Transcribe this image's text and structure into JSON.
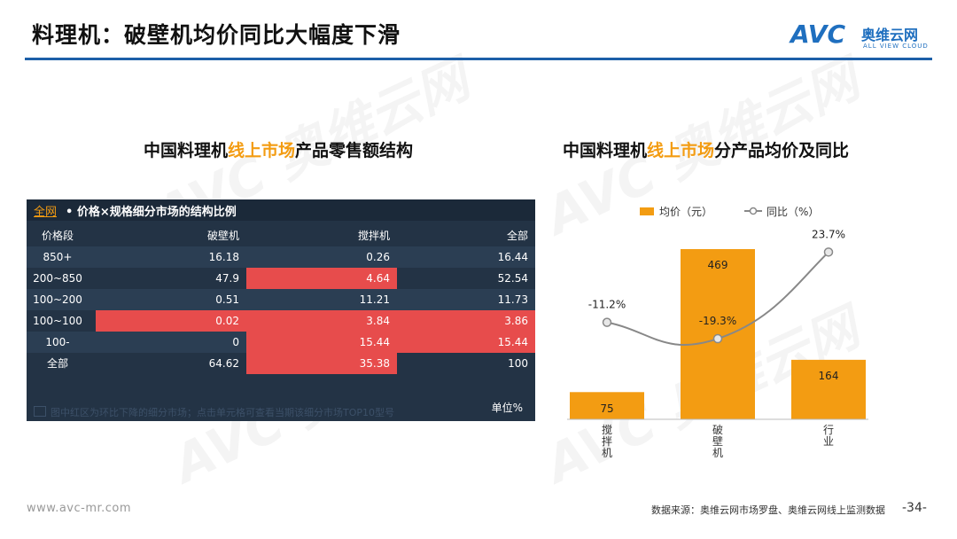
{
  "header": {
    "title": "料理机：破壁机均价同比大幅度下滑",
    "logo_text": "AVC",
    "logo_cn": "奥维云网",
    "logo_en": "ALL VIEW CLOUD"
  },
  "watermark": {
    "text": "AVC 奥维云网",
    "sub": "ALL VIEW CLOUD"
  },
  "left_section": {
    "title_prefix": "中国料理机",
    "title_highlight": "线上市场",
    "title_suffix": "产品零售额结构"
  },
  "right_section": {
    "title_prefix": "中国料理机",
    "title_highlight": "线上市场",
    "title_suffix": "分产品均价及同比"
  },
  "table": {
    "scope_link": "全网",
    "caption": "• 价格×规格细分市场的结构比例",
    "columns": [
      "价格段",
      "破壁机",
      "搅拌机",
      "全部"
    ],
    "rows": [
      {
        "cells": [
          "850+",
          "16.18",
          "0.26",
          "16.44"
        ],
        "red": [
          false,
          false,
          false
        ]
      },
      {
        "cells": [
          "200~850",
          "47.9",
          "4.64",
          "52.54"
        ],
        "red": [
          false,
          true,
          false
        ]
      },
      {
        "cells": [
          "100~200",
          "0.51",
          "11.21",
          "11.73"
        ],
        "red": [
          false,
          false,
          false
        ]
      },
      {
        "cells": [
          "100~100",
          "0.02",
          "3.84",
          "3.86"
        ],
        "red": [
          true,
          true,
          true
        ]
      },
      {
        "cells": [
          "100-",
          "0",
          "15.44",
          "15.44"
        ],
        "red": [
          false,
          true,
          true
        ]
      },
      {
        "cells": [
          "全部",
          "64.62",
          "35.38",
          "100"
        ],
        "red": [
          false,
          true,
          false
        ]
      }
    ],
    "note": "图中红区为环比下降的细分市场；点击单元格可查看当期该细分市场TOP10型号",
    "unit": "单位%"
  },
  "chart_data": {
    "type": "bar",
    "categories": [
      "搅拌机",
      "破壁机",
      "行业"
    ],
    "series": [
      {
        "name": "均价（元）",
        "type": "bar",
        "values": [
          75,
          469,
          164
        ],
        "color": "#f39c12"
      },
      {
        "name": "同比（%）",
        "type": "line",
        "values": [
          -11.2,
          -19.3,
          23.7
        ],
        "labels": [
          "-11.2%",
          "-19.3%",
          "23.7%"
        ],
        "color": "#888888"
      }
    ],
    "legend_position": "top",
    "grid": false
  },
  "footer": {
    "website": "www.avc-mr.com",
    "source": "数据来源：奥维云网市场罗盘、奥维云网线上监测数据",
    "page": "-34-"
  }
}
